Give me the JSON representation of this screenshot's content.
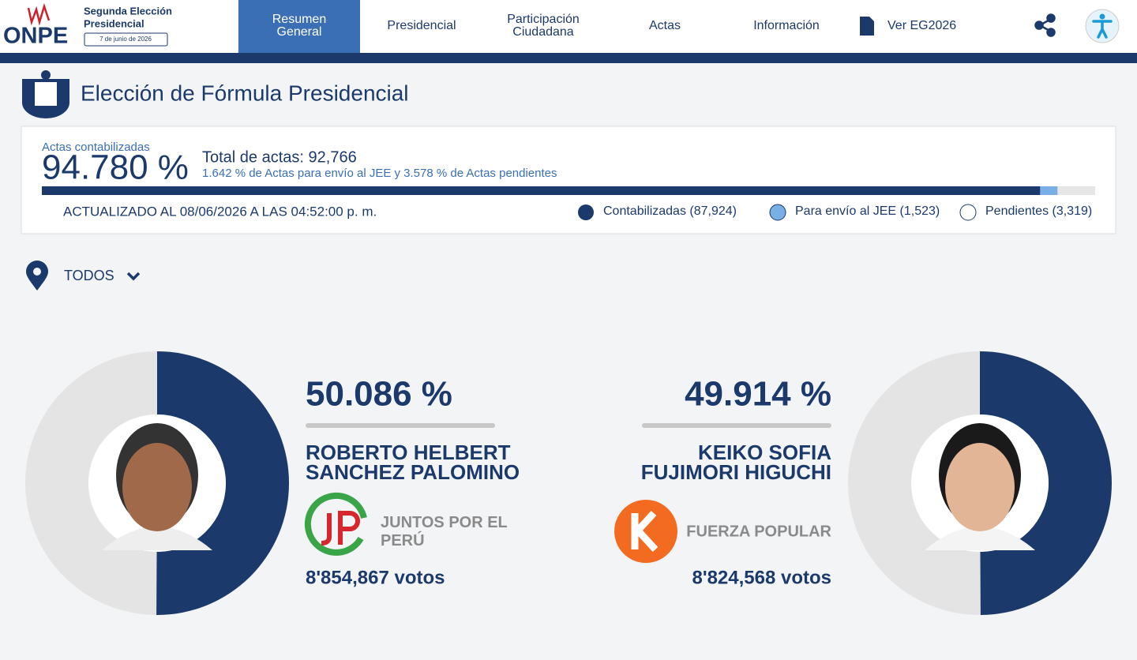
{
  "header": {
    "logo": "ONPE",
    "election": [
      "Segunda Elección",
      "Presidencial"
    ],
    "date": "7 de junio de 2026"
  },
  "nav": [
    [
      "Resumen",
      "General"
    ],
    [
      "Presidencial"
    ],
    [
      "Participación",
      "Ciudadana"
    ],
    [
      "Actas"
    ],
    [
      "Información"
    ],
    [
      "Ver EG2026"
    ]
  ],
  "page_title": "Elección de Fórmula Presidencial",
  "summary": {
    "counted_label": "Actas contabilizadas",
    "counted_pct": {
      "value": 94.78,
      "label": "94.780 %"
    },
    "total": "Total de actas: 92,766",
    "jee_pct": {
      "value": 1.642,
      "label": "1.642 %"
    },
    "jee_text": "de Actas para envío al JEE y",
    "pending_pct": {
      "value": 3.578,
      "label": "3.578 %"
    },
    "pending_text": "de Actas pendientes",
    "updated": "ACTUALIZADO AL 08/06/2026 A LAS 04:52:00 p. m.",
    "legend": [
      "Contabilizadas (87,924)",
      "Para envío al JEE (1,523)",
      "Pendientes (3,319)"
    ]
  },
  "filter": "TODOS",
  "candidates": [
    {
      "percent": {
        "value": 50.086,
        "label": "50.086 %"
      },
      "name": [
        "ROBERTO HELBERT",
        "SANCHEZ PALOMINO"
      ],
      "party": [
        "JUNTOS POR EL",
        "PERÚ"
      ],
      "votes": "8'854,867 votos"
    },
    {
      "percent": {
        "value": 49.914,
        "label": "49.914 %"
      },
      "name": [
        "KEIKO SOFIA",
        "FUJIMORI HIGUCHI"
      ],
      "party": [
        "FUERZA POPULAR"
      ],
      "votes": "8'824,568 votos"
    }
  ]
}
